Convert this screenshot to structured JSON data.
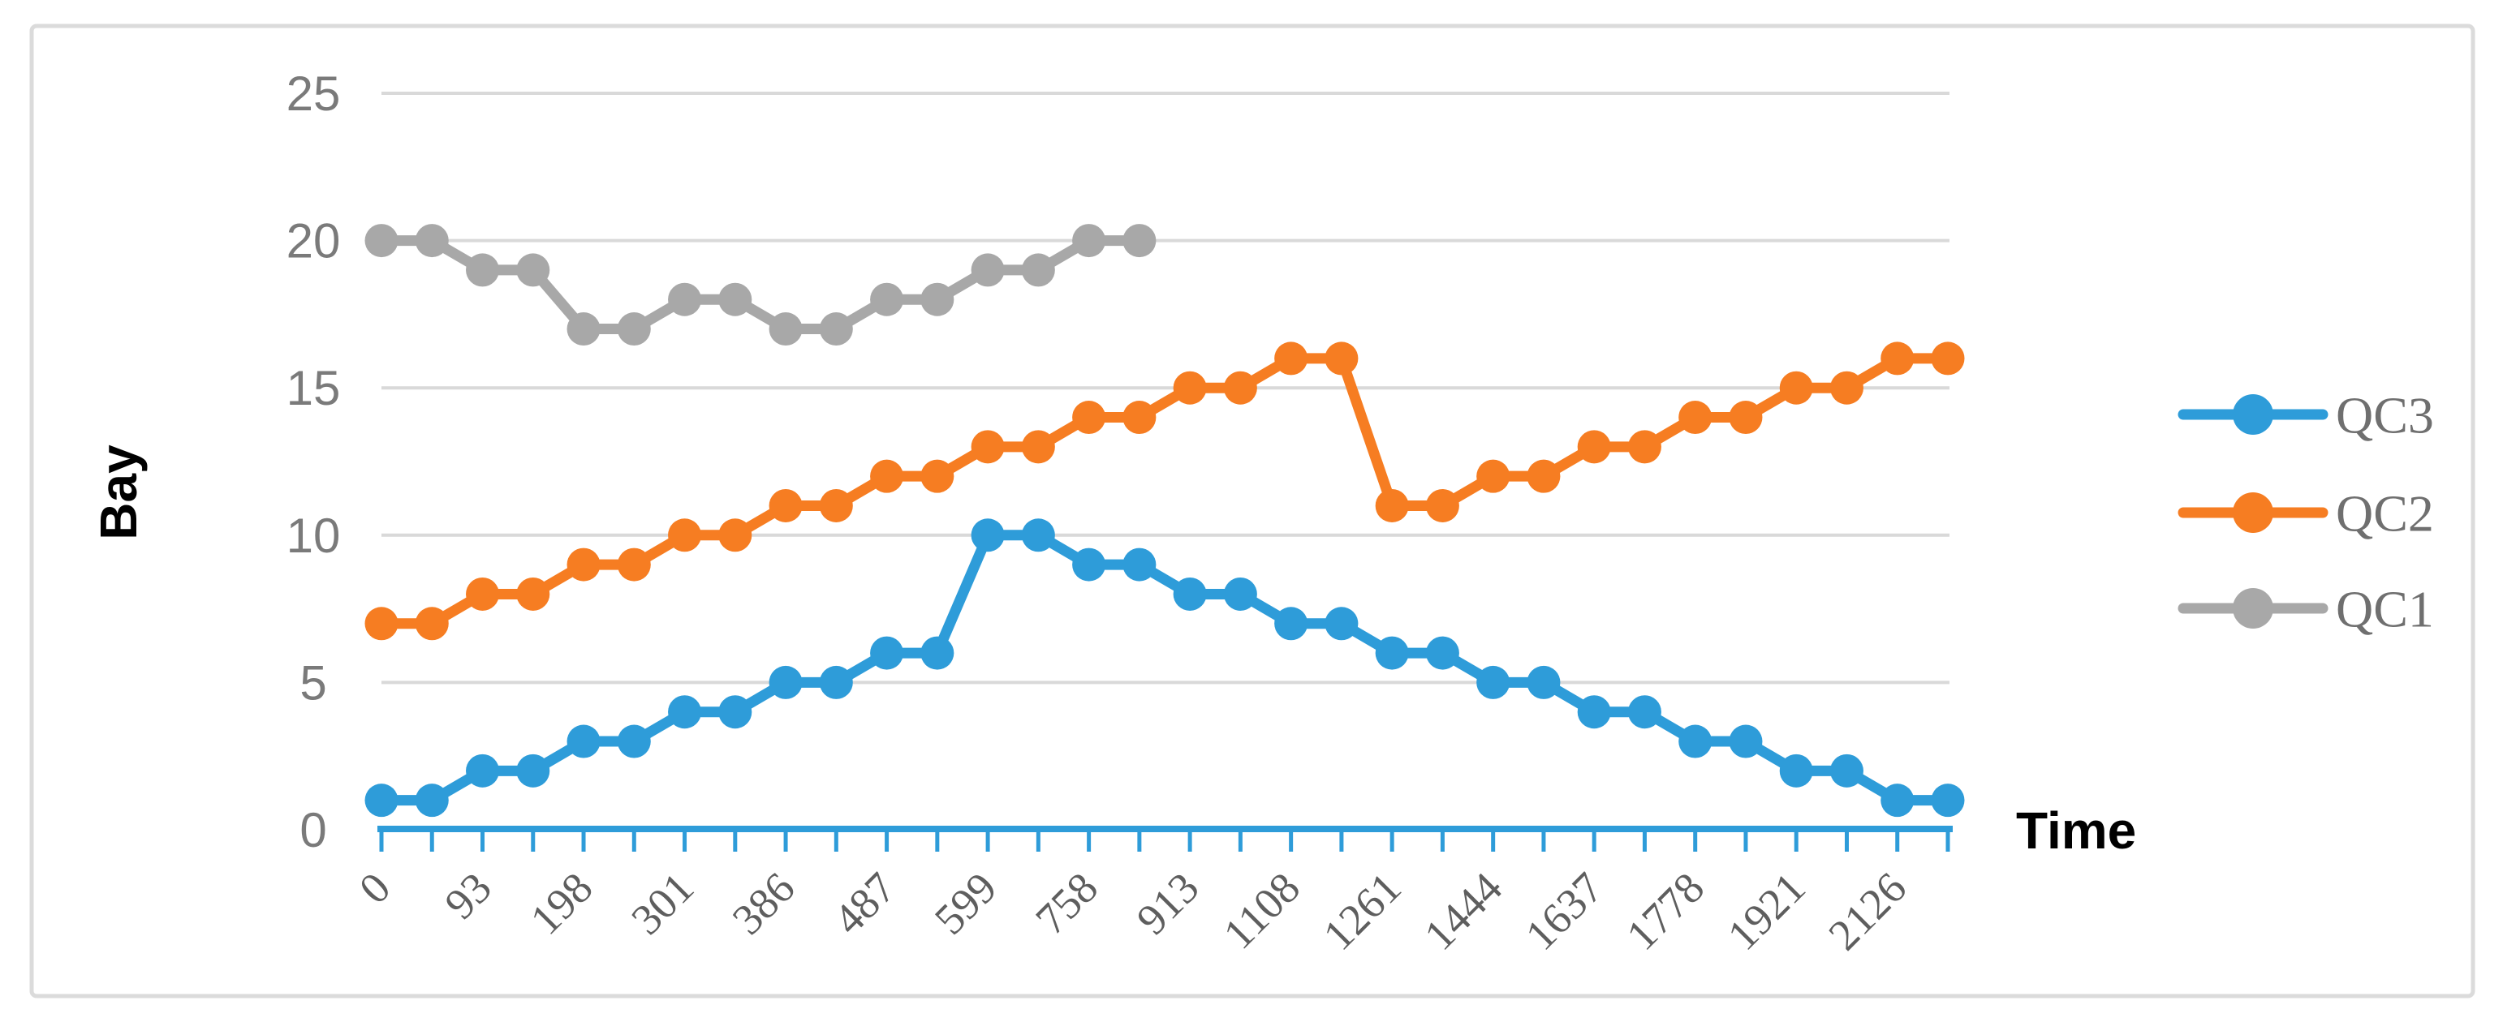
{
  "chart_data": {
    "type": "line",
    "title": "",
    "xlabel": "Time",
    "ylabel": "Bay",
    "ylim": [
      0,
      25
    ],
    "y_ticks": [
      0,
      5,
      10,
      15,
      20,
      25
    ],
    "n_categories": 32,
    "x_tick_labels": [
      "0",
      "93",
      "198",
      "301",
      "386",
      "487",
      "599",
      "758",
      "913",
      "1108",
      "1261",
      "1444",
      "1637",
      "1778",
      "1921",
      "2126"
    ],
    "x_tick_label_every": 2,
    "grid": "horizontal",
    "legend_position": "right",
    "series": [
      {
        "name": "QC1",
        "color": "#A8A8A8",
        "values": [
          20,
          20,
          19,
          19,
          17,
          17,
          18,
          18,
          17,
          17,
          18,
          18,
          19,
          19,
          20,
          20
        ]
      },
      {
        "name": "QC2",
        "color": "#F67D22",
        "values": [
          7,
          7,
          8,
          8,
          9,
          9,
          10,
          10,
          11,
          11,
          12,
          12,
          13,
          13,
          14,
          14,
          15,
          15,
          16,
          16,
          11,
          11,
          12,
          12,
          13,
          13,
          14,
          14,
          15,
          15,
          16,
          16
        ]
      },
      {
        "name": "QC3",
        "color": "#2E9CD9",
        "values": [
          1,
          1,
          2,
          2,
          3,
          3,
          4,
          4,
          5,
          5,
          6,
          6,
          10,
          10,
          9,
          9,
          8,
          8,
          7,
          7,
          6,
          6,
          5,
          5,
          4,
          4,
          3,
          3,
          2,
          2,
          1,
          1
        ]
      }
    ],
    "legend_order": [
      "QC3",
      "QC2",
      "QC1"
    ],
    "colors": {
      "axis_line": "#2E9CD9",
      "tick_mark": "#2E9CD9",
      "gridline": "#D9D9D9",
      "frame_border": "#DBDBDB",
      "y_tick_label": "#7A7A7A",
      "x_tick_label": "#5E5E5E",
      "legend_label": "#6F6F6F",
      "axis_title": "#000000",
      "background": "#FFFFFF"
    }
  }
}
